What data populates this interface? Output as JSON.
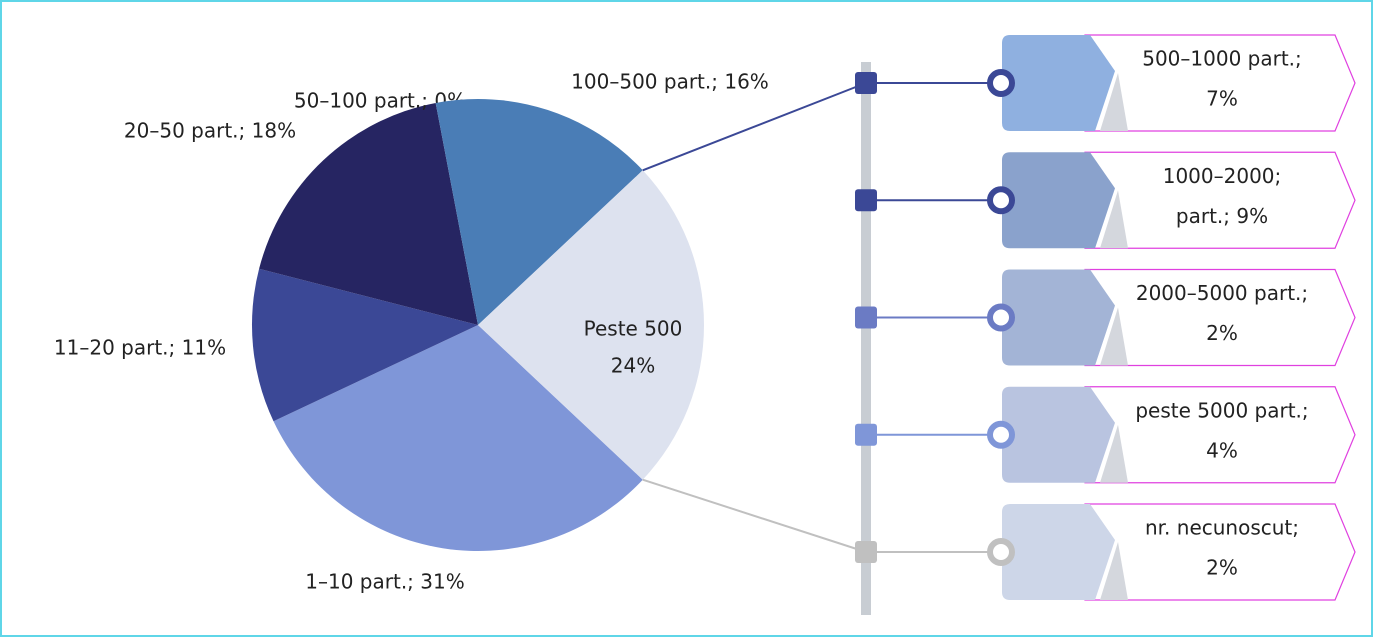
{
  "chart_data": {
    "type": "pie",
    "values": [
      31,
      11,
      18,
      0,
      16,
      24
    ],
    "value_labels": [
      [
        "1–10 part.; 31%"
      ],
      [
        "11–20 part.; 11%"
      ],
      [
        "20–50 part.; 18%"
      ],
      [
        "50–100 part.; 0%"
      ],
      [
        "100–500 part.; 16%"
      ],
      [
        "Peste 500",
        "24%"
      ]
    ],
    "colors": [
      "#7f96d8",
      "#3b4896",
      "#262562",
      "#2f3b80",
      "#4a7db6",
      "#dde2ef"
    ],
    "breakdown": {
      "values": [
        7,
        9,
        2,
        4,
        2
      ],
      "value_labels": [
        [
          "500–1000 part.;",
          "7%"
        ],
        [
          "1000–2000;",
          "part.; 9%"
        ],
        [
          "2000–5000 part.;",
          "2%"
        ],
        [
          "peste 5000 part.;",
          "4%"
        ],
        [
          "nr. necunoscut;",
          "2%"
        ]
      ],
      "colors": [
        "#8fb0e0",
        "#8aa2cc",
        "#a3b4d6",
        "#b9c4e0",
        "#cdd6e8"
      ],
      "marker_colors": [
        "#3b4896",
        "#3b4896",
        "#6b7bc4",
        "#7f96d8",
        "#c0c0c0"
      ]
    }
  }
}
